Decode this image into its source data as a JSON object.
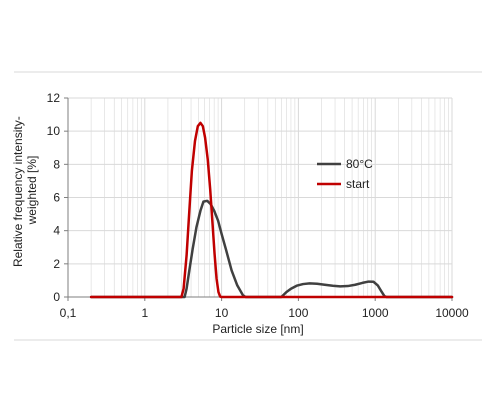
{
  "colors": {
    "series_80c": "#404040",
    "series_start": "#c00000",
    "grid": "#d9d9d9",
    "axis": "#7f7f7f",
    "frame": "#d9d9d9"
  },
  "chart_data": {
    "type": "line",
    "xscale": "log",
    "xlabel": "Particle size [nm]",
    "ylabel_lines": [
      "Relative frequency intensity-",
      "weighted [%]"
    ],
    "xlim": [
      0.1,
      10000
    ],
    "ylim": [
      0,
      12
    ],
    "x_ticks": [
      {
        "value": 0.1,
        "label": "0,1"
      },
      {
        "value": 1,
        "label": "1"
      },
      {
        "value": 10,
        "label": "10"
      },
      {
        "value": 100,
        "label": "100"
      },
      {
        "value": 1000,
        "label": "1000"
      },
      {
        "value": 10000,
        "label": "10000"
      }
    ],
    "y_ticks": [
      {
        "value": 0,
        "label": "0"
      },
      {
        "value": 2,
        "label": "2"
      },
      {
        "value": 4,
        "label": "4"
      },
      {
        "value": 6,
        "label": "6"
      },
      {
        "value": 8,
        "label": "8"
      },
      {
        "value": 10,
        "label": "10"
      },
      {
        "value": 12,
        "label": "12"
      }
    ],
    "grid": true,
    "legend_position": "right-center",
    "series": [
      {
        "name": "80°C",
        "color": "#404040",
        "x": [
          0.2,
          3.3,
          3.5,
          3.8,
          4.2,
          4.7,
          5.3,
          5.8,
          6.5,
          7.2,
          8.0,
          9.0,
          10.0,
          11.5,
          13.5,
          16.0,
          19.0,
          20.5,
          60,
          70,
          80,
          95,
          115,
          140,
          175,
          220,
          280,
          350,
          440,
          550,
          680,
          820,
          950,
          1080,
          1200,
          1320,
          1400,
          10000
        ],
        "y": [
          0,
          0,
          0.5,
          1.6,
          2.9,
          4.2,
          5.2,
          5.75,
          5.8,
          5.6,
          5.2,
          4.6,
          3.8,
          2.8,
          1.6,
          0.7,
          0.1,
          0,
          0,
          0.3,
          0.5,
          0.68,
          0.78,
          0.82,
          0.8,
          0.74,
          0.68,
          0.64,
          0.66,
          0.74,
          0.85,
          0.93,
          0.92,
          0.7,
          0.35,
          0.05,
          0,
          0
        ]
      },
      {
        "name": "start",
        "color": "#c00000",
        "x": [
          0.2,
          3.0,
          3.2,
          3.5,
          3.8,
          4.1,
          4.5,
          4.9,
          5.3,
          5.7,
          6.1,
          6.6,
          7.1,
          7.6,
          8.1,
          8.6,
          9.1,
          9.6,
          10.0,
          10000
        ],
        "y": [
          0,
          0,
          0.5,
          2.5,
          5.2,
          7.6,
          9.4,
          10.3,
          10.5,
          10.3,
          9.6,
          8.3,
          6.5,
          4.5,
          2.6,
          1.1,
          0.3,
          0.02,
          0,
          0
        ]
      }
    ]
  }
}
